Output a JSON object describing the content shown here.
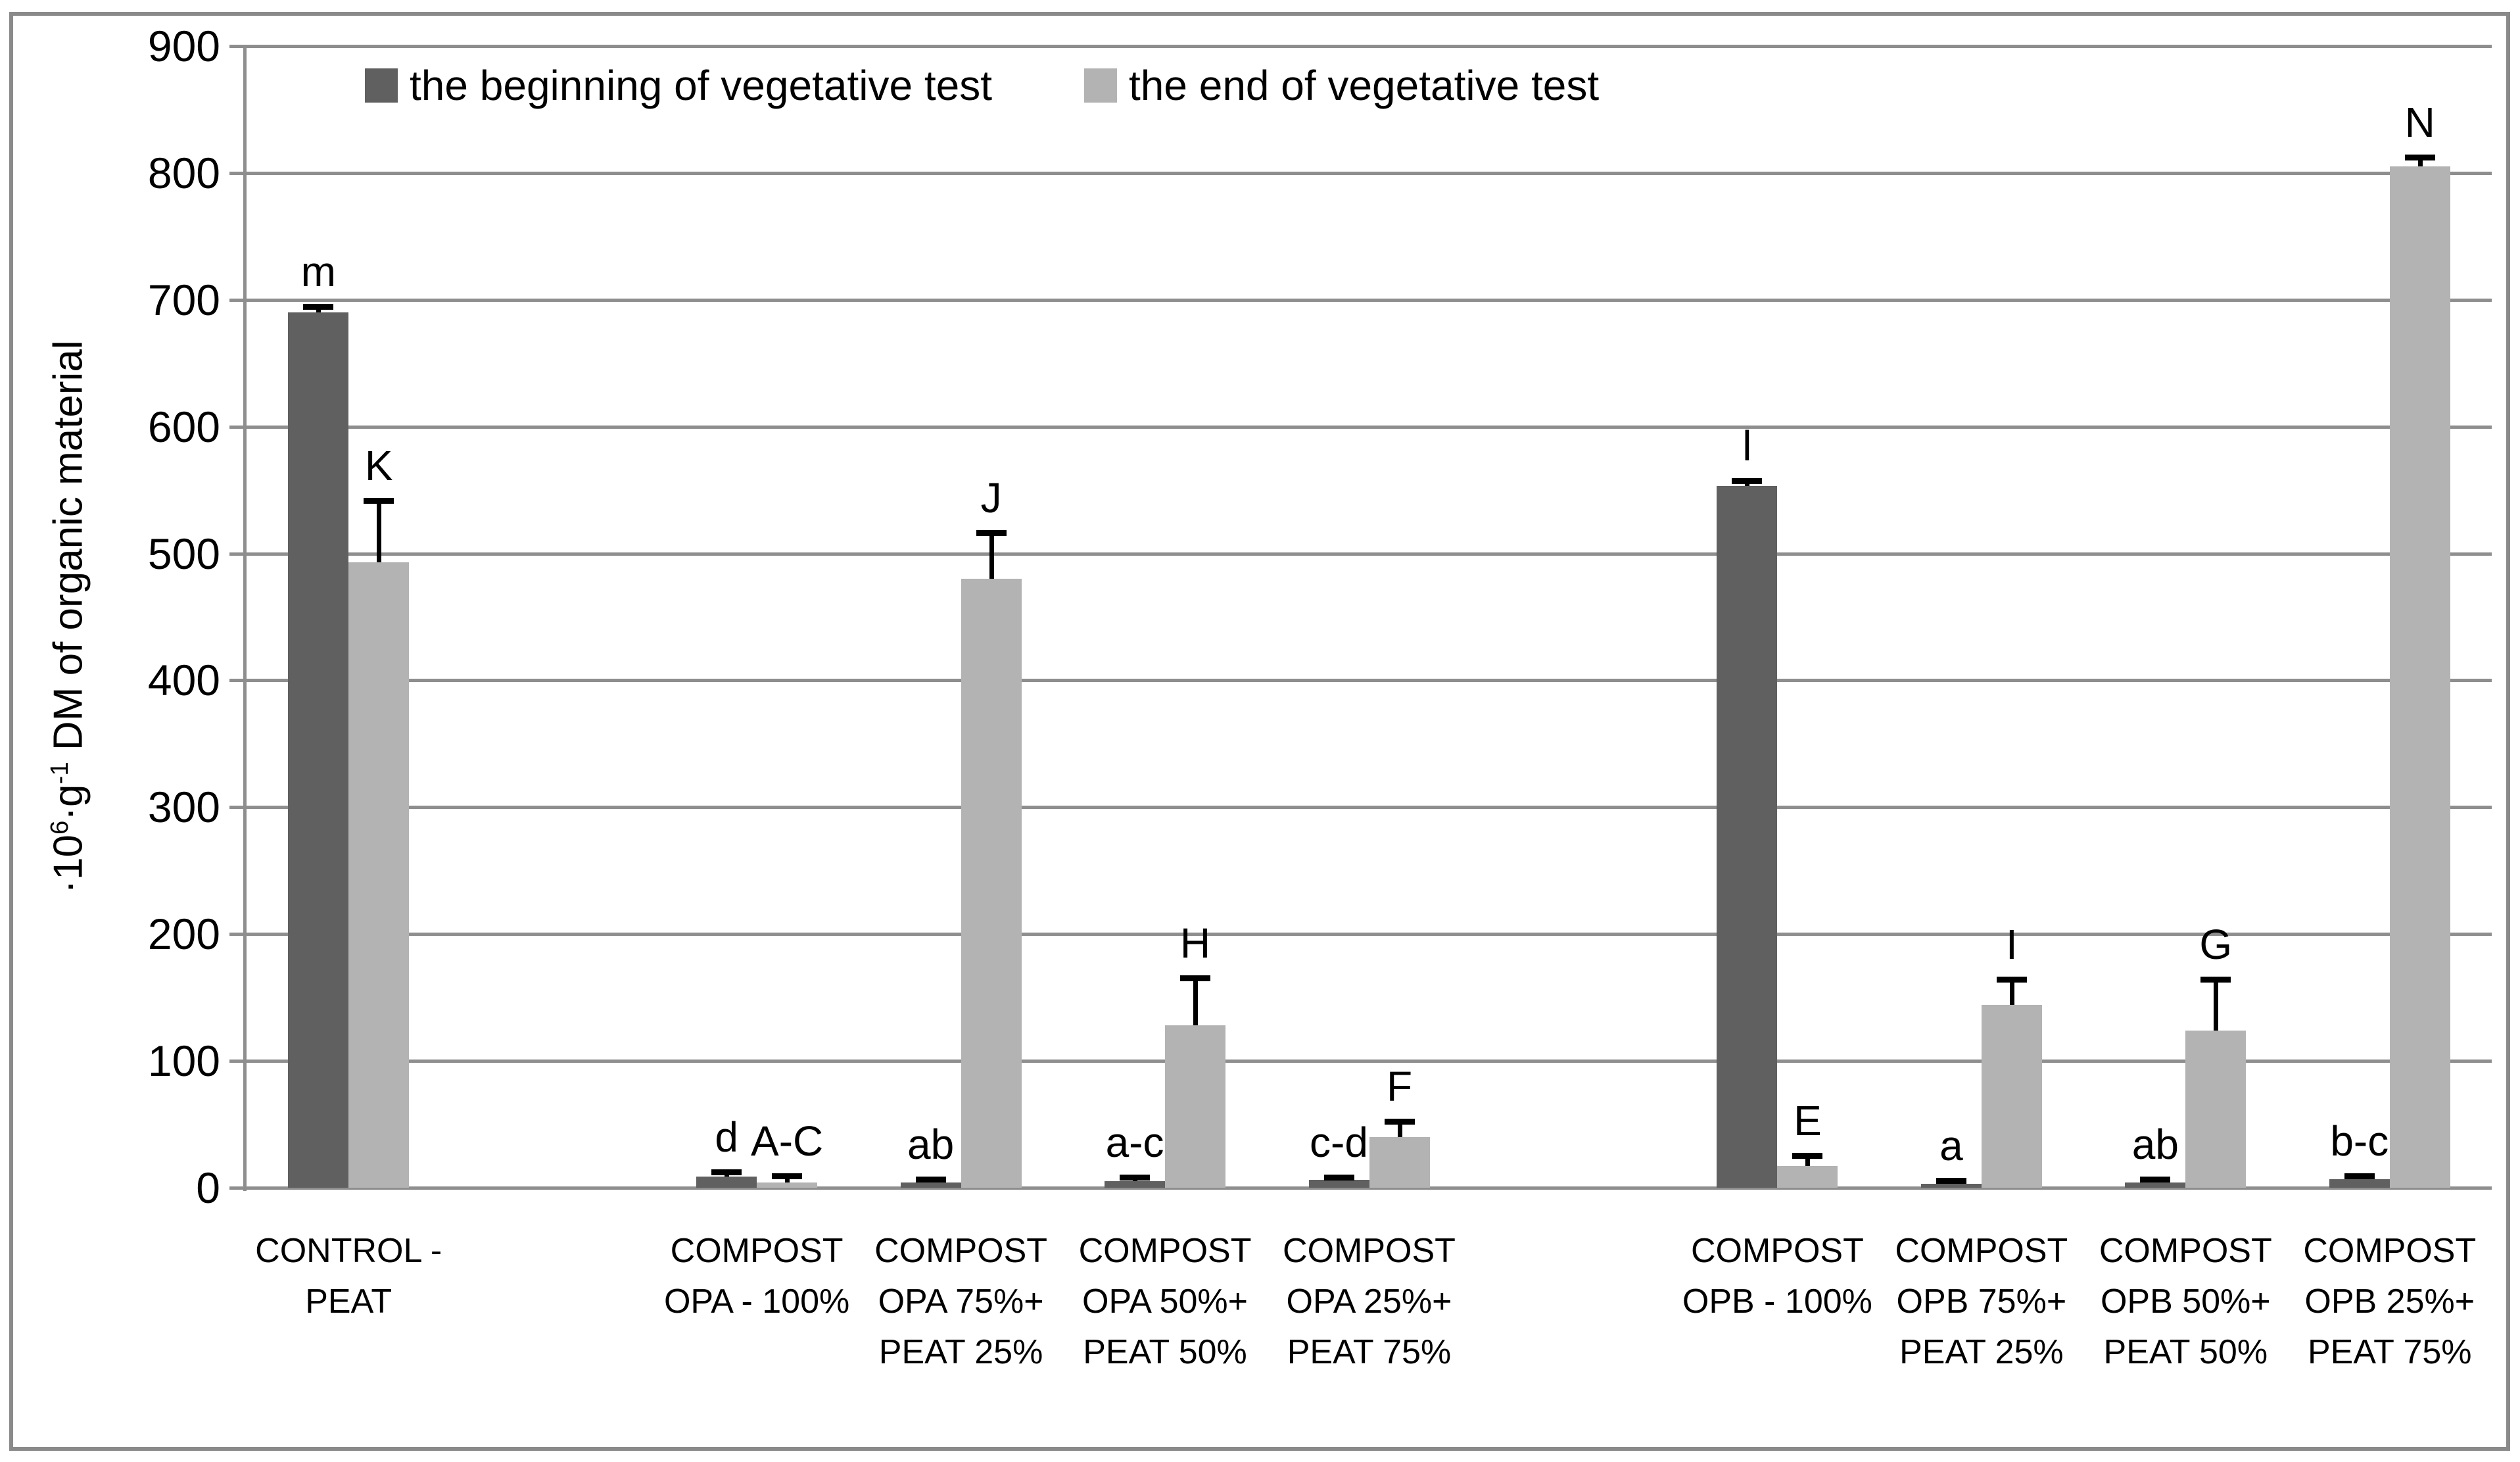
{
  "chart_data": {
    "type": "bar",
    "title": "",
    "ylabel_parts": [
      {
        "text": "·10",
        "sup": false
      },
      {
        "text": "6",
        "sup": true
      },
      {
        "text": "·g",
        "sup": false
      },
      {
        "text": "-1",
        "sup": true
      },
      {
        "text": " DM of organic material",
        "sup": false
      }
    ],
    "ylim": [
      0,
      900
    ],
    "y_step": 100,
    "grid": "horizontal",
    "legend_position": "top-left-inside",
    "colors": {
      "beginning": "#606060",
      "end": "#b3b3b3",
      "gridline": "#8e8e8e",
      "frame": "#8a8a8a",
      "error_bar": "#000000"
    },
    "series": [
      {
        "name": "the beginning of vegetative test",
        "key": "beginning"
      },
      {
        "name": "the end of vegetative test",
        "key": "end"
      }
    ],
    "slots_total": 11,
    "groups": [
      {
        "slot": 0,
        "label_lines": [
          "CONTROL -",
          "PEAT"
        ],
        "beginning": {
          "value": 690,
          "err_top": 694,
          "letter": "m"
        },
        "end": {
          "value": 493,
          "err_top": 541,
          "letter": "K"
        }
      },
      {
        "slot": 2,
        "label_lines": [
          "COMPOST",
          "OPA - 100%"
        ],
        "beginning": {
          "value": 9,
          "err_top": 12,
          "letter": "d"
        },
        "end": {
          "value": 4,
          "err_top": 9,
          "letter": "A-C"
        }
      },
      {
        "slot": 3,
        "label_lines": [
          "COMPOST",
          "OPA 75%+",
          "PEAT 25%"
        ],
        "beginning": {
          "value": 4,
          "err_top": 6,
          "letter": "ab"
        },
        "end": {
          "value": 480,
          "err_top": 516,
          "letter": "J"
        }
      },
      {
        "slot": 4,
        "label_lines": [
          "COMPOST",
          "OPA 50%+",
          "PEAT 50%"
        ],
        "beginning": {
          "value": 5,
          "err_top": 8,
          "letter": "a-c"
        },
        "end": {
          "value": 128,
          "err_top": 165,
          "letter": "H"
        }
      },
      {
        "slot": 5,
        "label_lines": [
          "COMPOST",
          "OPA 25%+",
          "PEAT 75%"
        ],
        "beginning": {
          "value": 6,
          "err_top": 8,
          "letter": "c-d"
        },
        "end": {
          "value": 40,
          "err_top": 52,
          "letter": "F"
        }
      },
      {
        "slot": 7,
        "label_lines": [
          "COMPOST",
          "OPB - 100%"
        ],
        "beginning": {
          "value": 553,
          "err_top": 557,
          "letter": "l"
        },
        "end": {
          "value": 17,
          "err_top": 25,
          "letter": "E"
        }
      },
      {
        "slot": 8,
        "label_lines": [
          "COMPOST",
          "OPB 75%+",
          "PEAT 25%"
        ],
        "beginning": {
          "value": 3,
          "err_top": 5,
          "letter": "a"
        },
        "end": {
          "value": 144,
          "err_top": 164,
          "letter": "I"
        }
      },
      {
        "slot": 9,
        "label_lines": [
          "COMPOST",
          "OPB 50%+",
          "PEAT 50%"
        ],
        "beginning": {
          "value": 4,
          "err_top": 6,
          "letter": "ab"
        },
        "end": {
          "value": 124,
          "err_top": 164,
          "letter": "G"
        }
      },
      {
        "slot": 10,
        "label_lines": [
          "COMPOST",
          "OPB 25%+",
          "PEAT 75%"
        ],
        "beginning": {
          "value": 7,
          "err_top": 9,
          "letter": "b-c"
        },
        "end": {
          "value": 805,
          "err_top": 812,
          "letter": "N"
        }
      }
    ]
  }
}
